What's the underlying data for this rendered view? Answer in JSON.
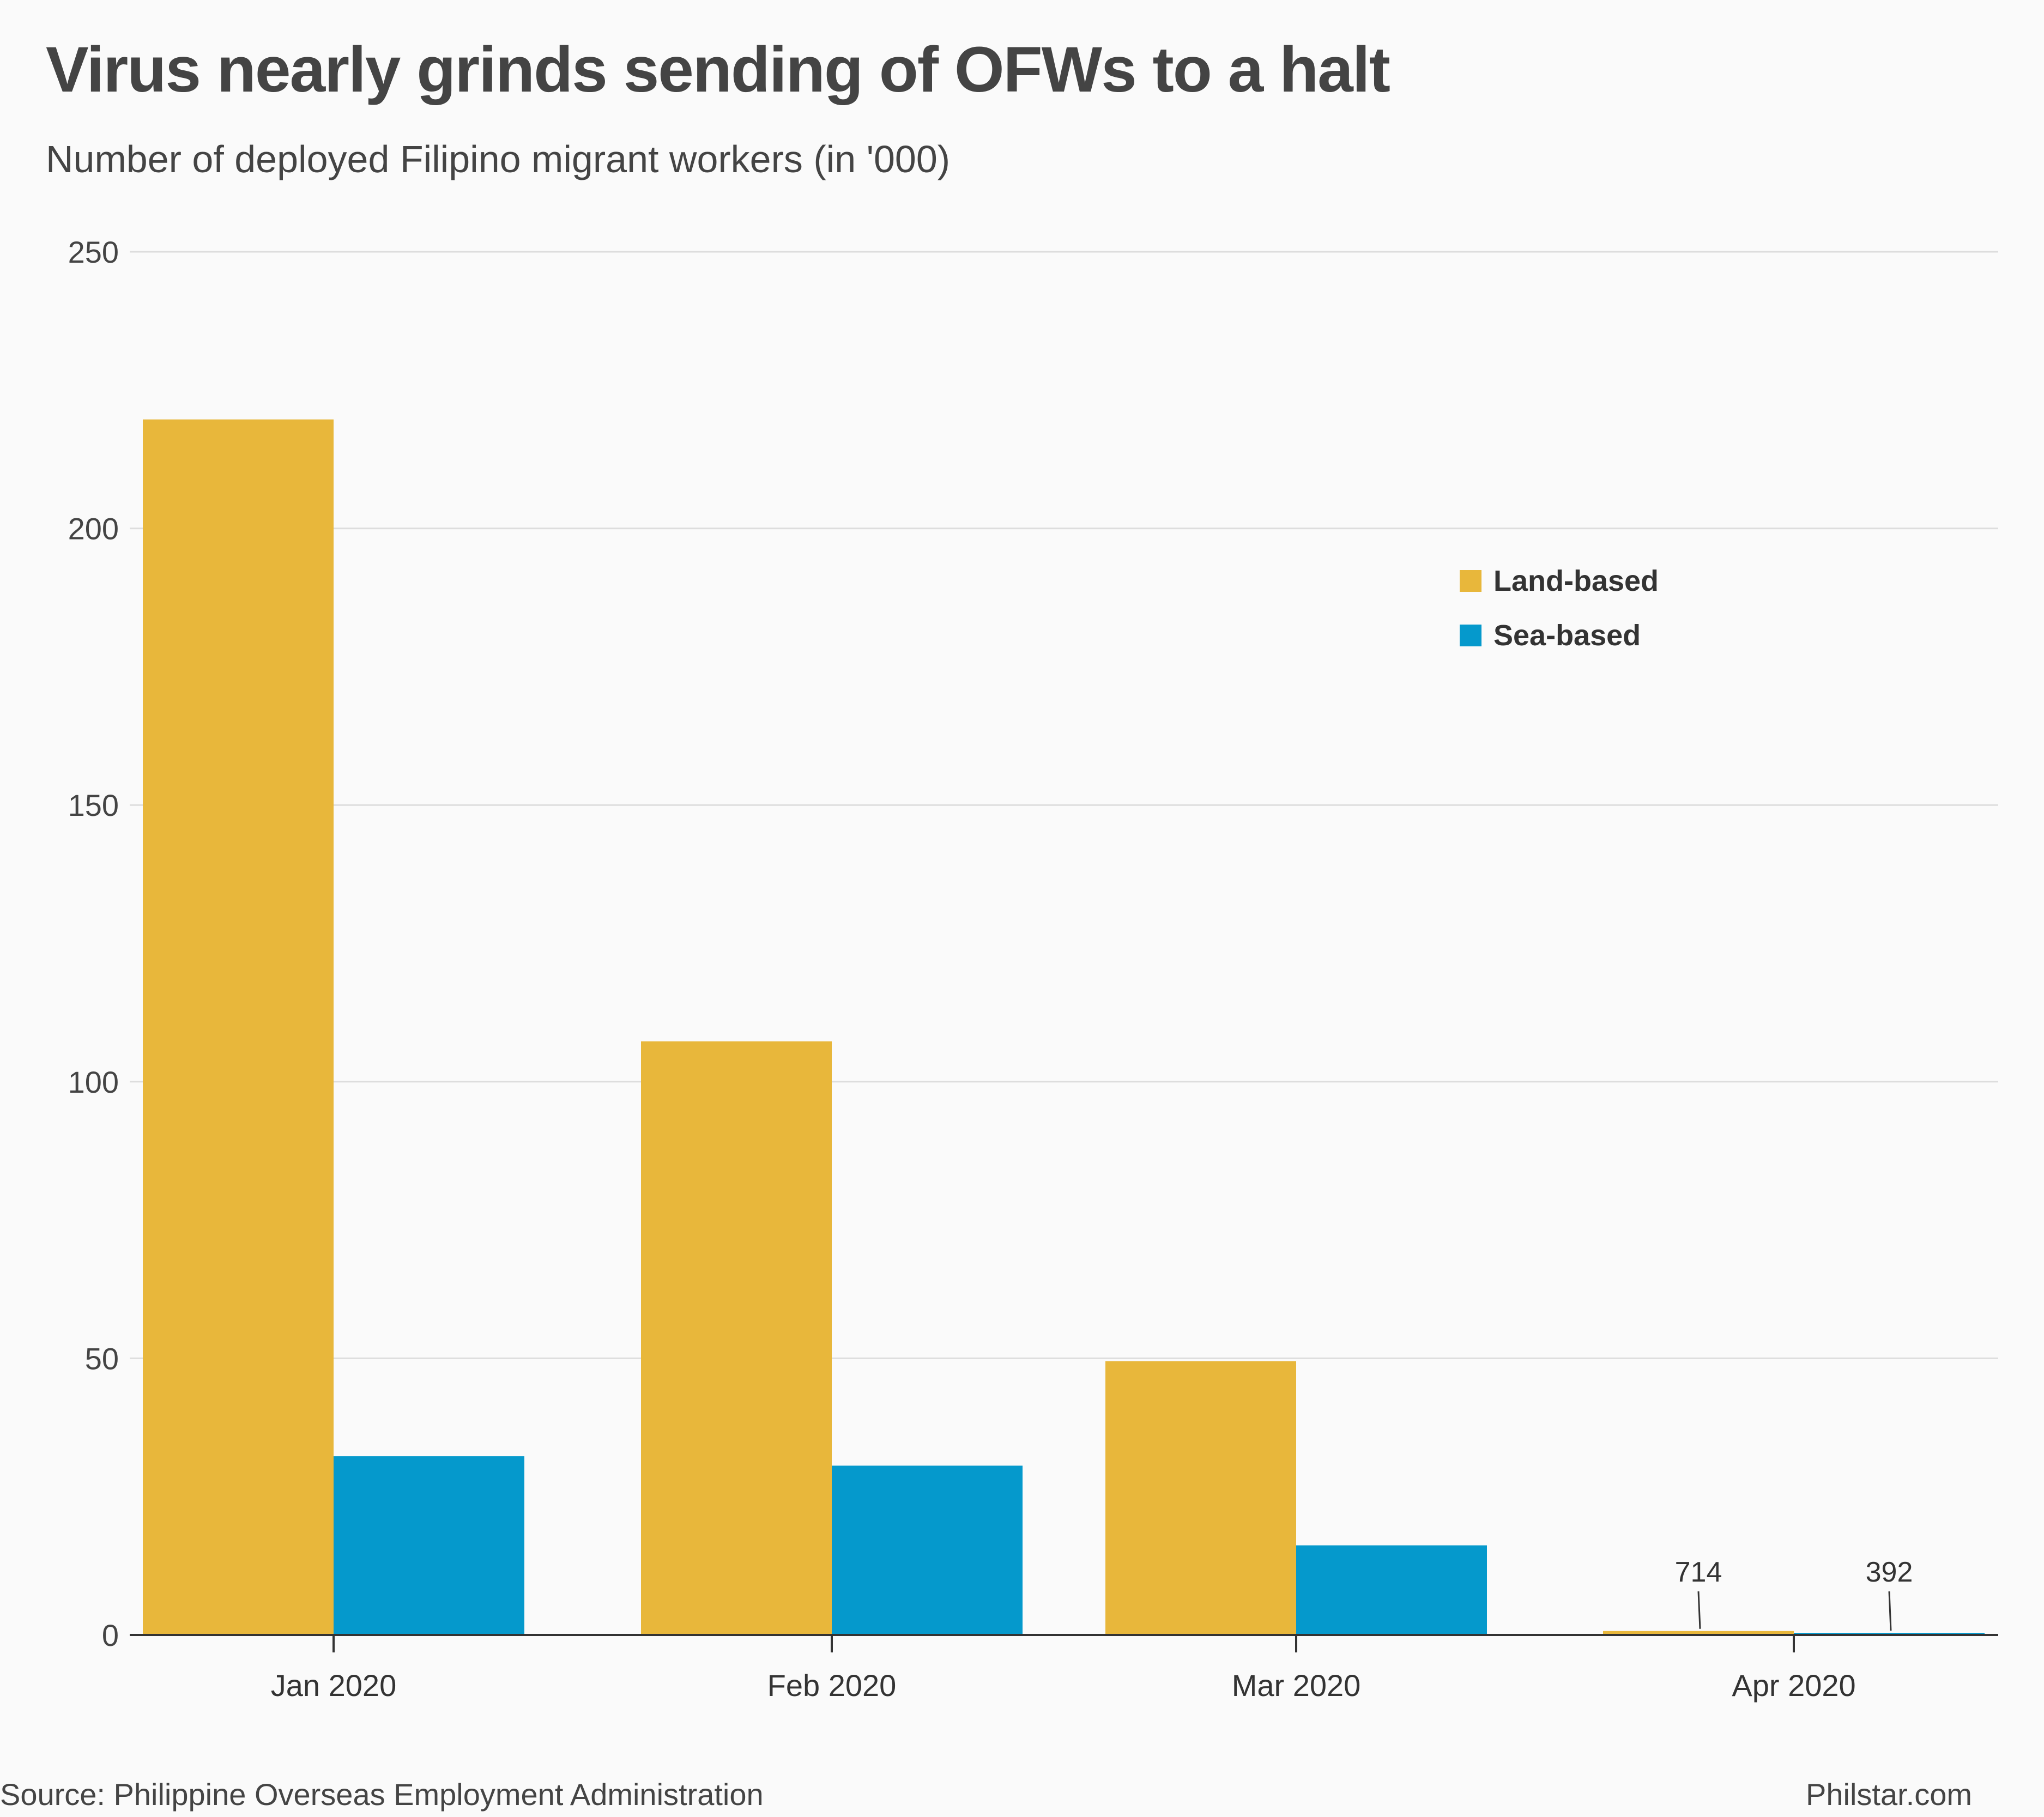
{
  "chart_data": {
    "type": "bar",
    "title": "Virus nearly grinds sending of OFWs to a halt",
    "subtitle": "Number of deployed Filipino migrant workers (in '000)",
    "categories": [
      "Jan 2020",
      "Feb 2020",
      "Mar 2020",
      "Apr 2020"
    ],
    "series": [
      {
        "name": "Land-based",
        "color": "#e8b73b",
        "values": [
          219.7,
          107.3,
          49.5,
          0.714
        ]
      },
      {
        "name": "Sea-based",
        "color": "#0599cc",
        "values": [
          32.3,
          30.6,
          16.2,
          0.392
        ]
      }
    ],
    "data_labels": [
      {
        "series": "Land-based",
        "category": "Apr 2020",
        "text": "714"
      },
      {
        "series": "Sea-based",
        "category": "Apr 2020",
        "text": "392"
      }
    ],
    "ylim": [
      0,
      250
    ],
    "yticks": [
      0,
      50,
      100,
      150,
      200,
      250
    ],
    "xlabel": "",
    "ylabel": "",
    "grid": true,
    "legend_position": "top-right"
  },
  "footer": {
    "source": "Source: Philippine Overseas Employment Administration",
    "credit": "Philstar.com"
  }
}
